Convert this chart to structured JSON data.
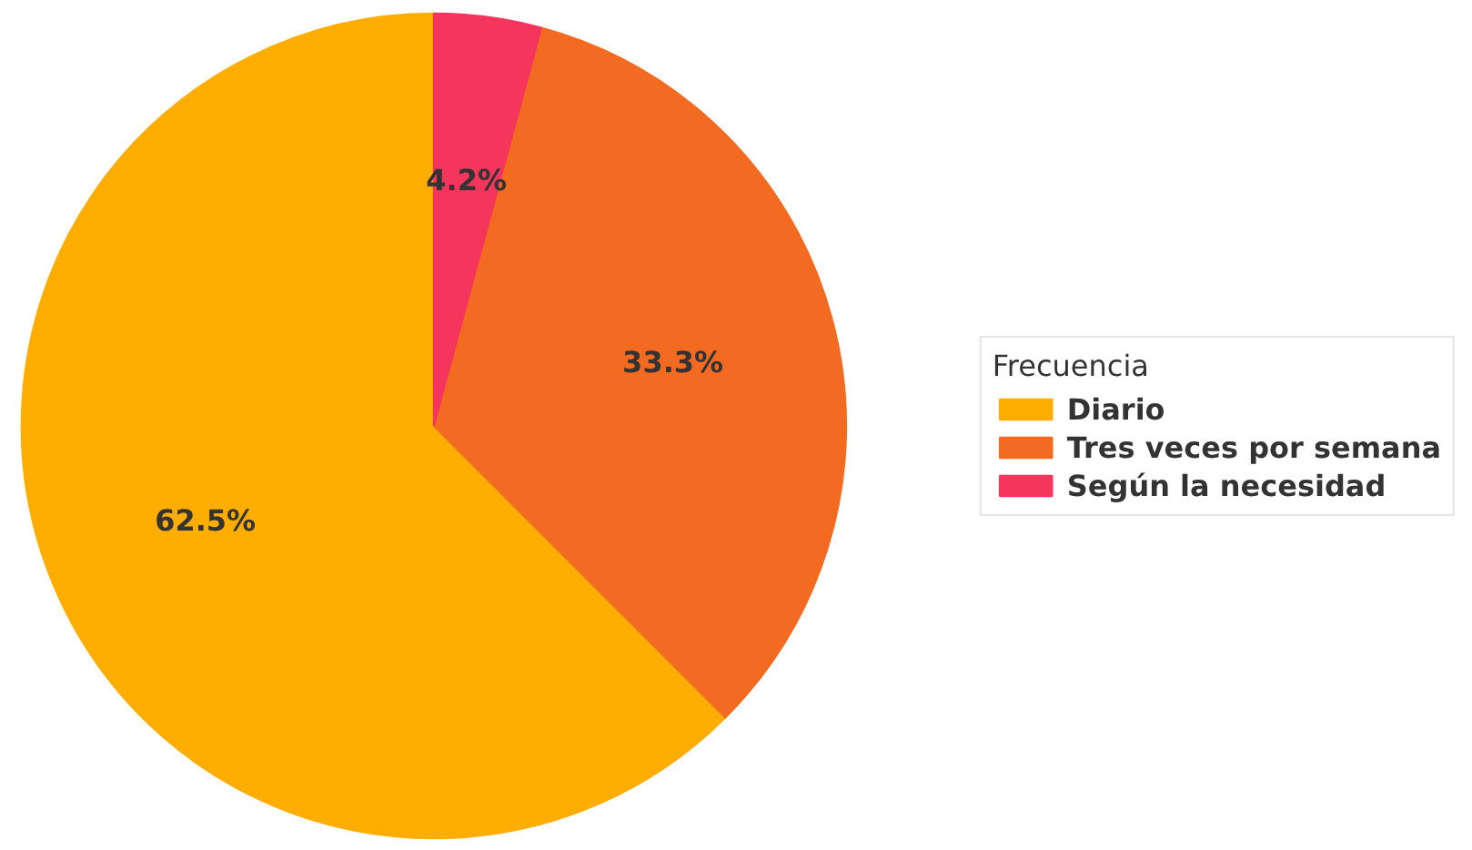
{
  "chart_data": {
    "type": "pie",
    "legend_title": "Frecuencia",
    "categories": [
      "Diario",
      "Tres veces por semana",
      "Según la necesidad"
    ],
    "values": [
      62.5,
      33.3,
      4.2
    ],
    "colors": [
      "#ffad00",
      "#f26b21",
      "#f5365c"
    ],
    "value_labels": [
      "62.5%",
      "33.3%",
      "4.2%"
    ],
    "legend": "right"
  }
}
